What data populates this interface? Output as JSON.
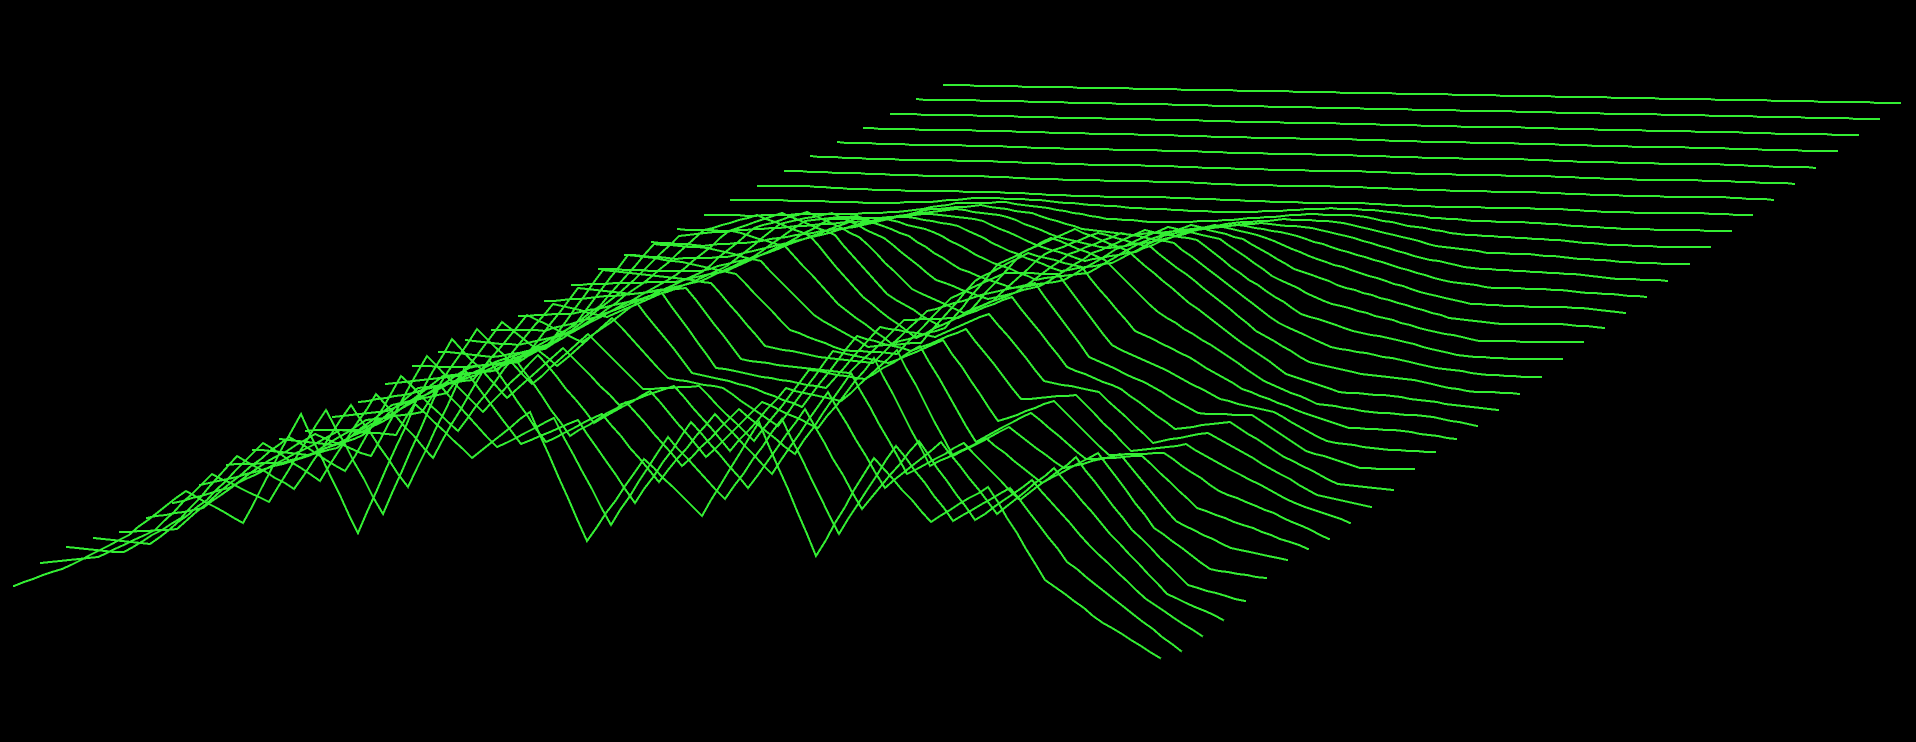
{
  "chart_data": {
    "type": "line",
    "title": "",
    "xlabel": "",
    "ylabel": "",
    "zlabel": "",
    "grid": false,
    "legend": "none",
    "colors": {
      "background": "#000000",
      "trace": "#33ee33"
    },
    "trace_count": 36,
    "x": [
      0,
      0.05,
      0.1,
      0.15,
      0.2,
      0.25,
      0.3,
      0.35,
      0.4,
      0.45,
      0.5,
      0.55,
      0.6,
      0.65,
      0.7,
      0.75,
      0.8,
      0.85,
      0.9,
      0.95,
      1
    ],
    "profiles": {
      "front": [
        0.02,
        0.08,
        0.3,
        0.55,
        0.35,
        0.85,
        0.4,
        1.0,
        0.7,
        0.95,
        0.45,
        0.8,
        0.5,
        1.0,
        0.45,
        0.85,
        0.55,
        0.8,
        0.4,
        0.15,
        0.02
      ],
      "middle": [
        0.02,
        0.04,
        0.12,
        0.3,
        0.55,
        0.9,
        1.0,
        0.85,
        0.5,
        0.3,
        0.45,
        0.8,
        1.0,
        0.9,
        0.6,
        0.35,
        0.18,
        0.08,
        0.03,
        0.01,
        0.0
      ],
      "back": [
        0.0,
        0.0,
        0.0,
        0.0,
        0.0,
        0.0,
        0.0,
        0.0,
        0.0,
        0.0,
        0.0,
        0.0,
        0.0,
        0.0,
        0.0,
        0.0,
        0.0,
        0.0,
        0.0,
        0.0,
        0.0
      ]
    },
    "series": []
  }
}
